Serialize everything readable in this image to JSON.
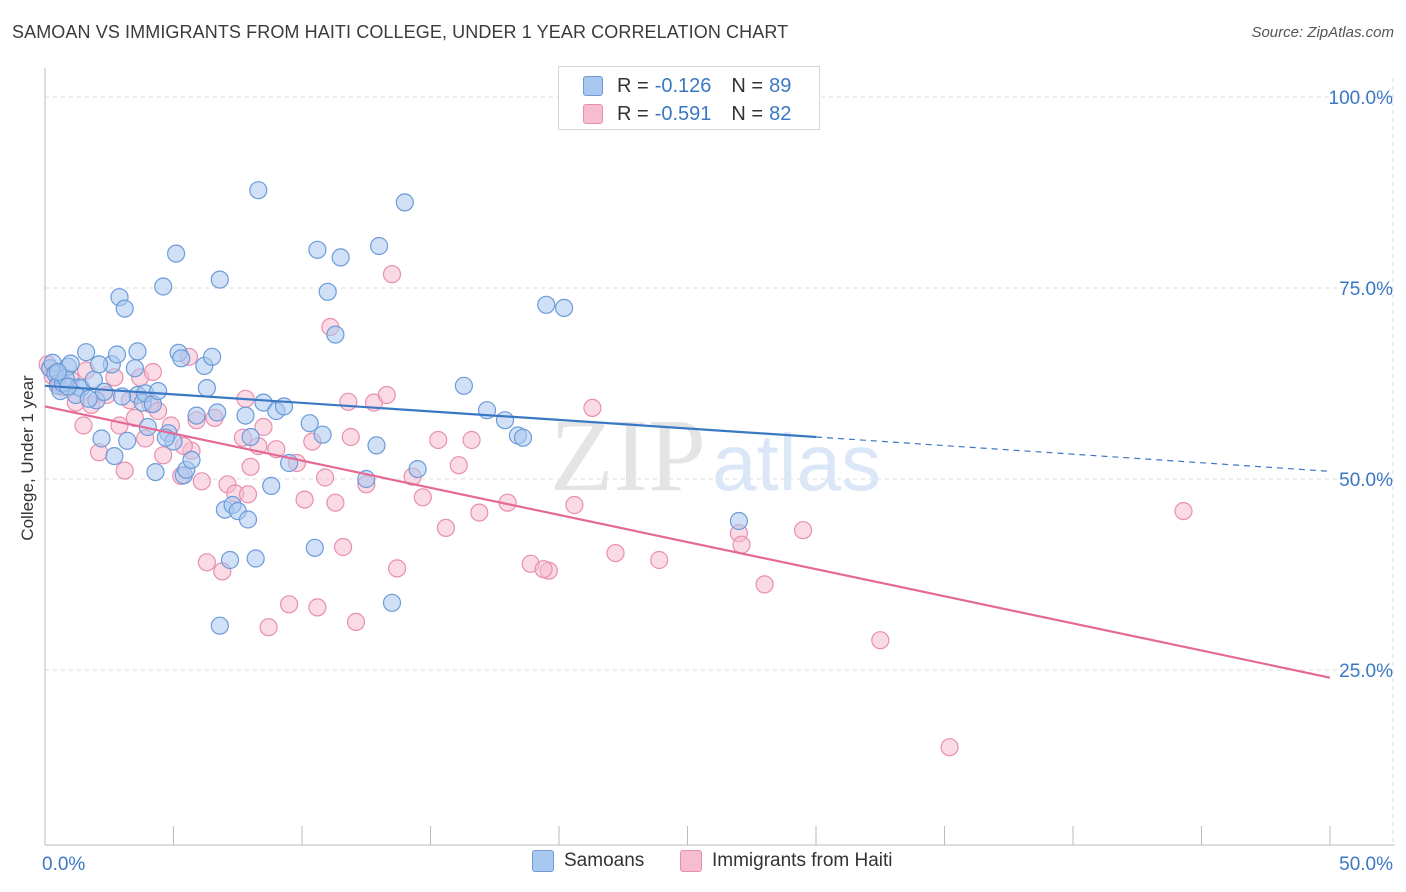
{
  "title": "SAMOAN VS IMMIGRANTS FROM HAITI COLLEGE, UNDER 1 YEAR CORRELATION CHART",
  "source": "Source: ZipAtlas.com",
  "legend": {
    "samoan": {
      "r_label": "R =",
      "r_value": "-0.126",
      "n_label": "N =",
      "n_value": "89"
    },
    "haiti": {
      "r_label": "R =",
      "r_value": "-0.591",
      "n_label": "N =",
      "n_value": "82"
    }
  },
  "colors": {
    "samoan_fill": "#a9c8f0",
    "samoan_stroke": "#6c9bd8",
    "samoan_line": "#3b78c4",
    "haiti_fill": "#f6bcd0",
    "haiti_stroke": "#e88fae",
    "haiti_line": "#e46a95",
    "axis_text": "#3b78c4",
    "grid": "#dddddd"
  },
  "watermark": {
    "zip": "ZIP",
    "atlas": "atlas"
  },
  "chart_data": {
    "type": "scatter",
    "title": "SAMOAN VS IMMIGRANTS FROM HAITI COLLEGE, UNDER 1 YEAR CORRELATION CHART",
    "xlabel": "",
    "ylabel": "College, Under 1 year",
    "xlim": [
      0,
      50
    ],
    "ylim": [
      5,
      103
    ],
    "x_ticks": [
      "0.0%",
      "50.0%"
    ],
    "y_ticks": [
      {
        "value": 100,
        "label": "100.0%"
      },
      {
        "value": 75,
        "label": "75.0%"
      },
      {
        "value": 50,
        "label": "50.0%"
      },
      {
        "value": 25,
        "label": "25.0%"
      }
    ],
    "grid": true,
    "legend_position": "bottom-center",
    "series": [
      {
        "name": "Samoans",
        "trend": {
          "x0": 0,
          "y0": 62.2,
          "x1": 30,
          "y1": 55.5,
          "dash_x1": 50,
          "dash_y1": 51.0
        },
        "points": [
          [
            0.2,
            64.5
          ],
          [
            0.3,
            65.2
          ],
          [
            0.4,
            63.8
          ],
          [
            0.5,
            62.2
          ],
          [
            0.6,
            61.5
          ],
          [
            0.7,
            62.5
          ],
          [
            0.9,
            64.7
          ],
          [
            0.8,
            63.2
          ],
          [
            1.0,
            65.1
          ],
          [
            1.3,
            62.0
          ],
          [
            1.6,
            66.6
          ],
          [
            1.4,
            61.9
          ],
          [
            1.9,
            63.0
          ],
          [
            2.0,
            60.3
          ],
          [
            2.2,
            55.3
          ],
          [
            2.3,
            61.4
          ],
          [
            2.6,
            65.0
          ],
          [
            2.8,
            66.3
          ],
          [
            2.7,
            53.0
          ],
          [
            2.9,
            73.8
          ],
          [
            3.1,
            72.3
          ],
          [
            3.2,
            55.0
          ],
          [
            3.5,
            64.5
          ],
          [
            3.6,
            61.0
          ],
          [
            3.6,
            66.7
          ],
          [
            3.8,
            60.0
          ],
          [
            3.9,
            61.2
          ],
          [
            4.0,
            56.8
          ],
          [
            4.2,
            59.8
          ],
          [
            4.3,
            50.9
          ],
          [
            4.4,
            61.5
          ],
          [
            4.6,
            75.2
          ],
          [
            4.8,
            56.0
          ],
          [
            5.0,
            54.9
          ],
          [
            5.1,
            79.5
          ],
          [
            5.2,
            66.5
          ],
          [
            5.3,
            65.8
          ],
          [
            5.4,
            50.5
          ],
          [
            5.5,
            51.2
          ],
          [
            5.7,
            52.5
          ],
          [
            5.9,
            58.3
          ],
          [
            6.2,
            64.8
          ],
          [
            6.3,
            61.9
          ],
          [
            6.5,
            66.0
          ],
          [
            6.7,
            58.7
          ],
          [
            6.8,
            76.1
          ],
          [
            7.0,
            46.0
          ],
          [
            7.2,
            39.4
          ],
          [
            7.3,
            46.6
          ],
          [
            7.5,
            45.8
          ],
          [
            7.8,
            58.3
          ],
          [
            7.9,
            44.7
          ],
          [
            8.0,
            55.5
          ],
          [
            8.2,
            39.6
          ],
          [
            8.3,
            87.8
          ],
          [
            8.5,
            60.0
          ],
          [
            8.8,
            49.1
          ],
          [
            9.0,
            58.9
          ],
          [
            9.3,
            59.5
          ],
          [
            9.5,
            52.1
          ],
          [
            10.3,
            57.3
          ],
          [
            10.5,
            41.0
          ],
          [
            10.6,
            80.0
          ],
          [
            10.8,
            55.8
          ],
          [
            11.0,
            74.5
          ],
          [
            11.3,
            68.9
          ],
          [
            11.5,
            79.0
          ],
          [
            12.5,
            50.0
          ],
          [
            12.9,
            54.4
          ],
          [
            13.0,
            80.5
          ],
          [
            13.5,
            33.8
          ],
          [
            14.0,
            86.2
          ],
          [
            14.5,
            51.3
          ],
          [
            16.3,
            62.2
          ],
          [
            17.2,
            59.0
          ],
          [
            17.9,
            57.7
          ],
          [
            18.4,
            55.7
          ],
          [
            19.5,
            72.8
          ],
          [
            20.2,
            72.4
          ],
          [
            27.0,
            44.5
          ],
          [
            1.2,
            61.0
          ],
          [
            2.1,
            65.0
          ],
          [
            3.0,
            60.8
          ],
          [
            0.5,
            64.0
          ],
          [
            1.7,
            60.5
          ],
          [
            6.8,
            30.8
          ],
          [
            4.7,
            55.4
          ],
          [
            0.9,
            62.1
          ],
          [
            18.6,
            55.4
          ]
        ]
      },
      {
        "name": "Immigrants from Haiti",
        "trend": {
          "x0": 0,
          "y0": 59.5,
          "x1": 50,
          "y1": 24.0
        },
        "points": [
          [
            0.1,
            65.0
          ],
          [
            0.2,
            64.5
          ],
          [
            0.3,
            63.5
          ],
          [
            0.5,
            62.5
          ],
          [
            0.7,
            62.0
          ],
          [
            1.0,
            63.0
          ],
          [
            1.2,
            60.0
          ],
          [
            1.5,
            57.0
          ],
          [
            1.8,
            59.7
          ],
          [
            2.1,
            53.5
          ],
          [
            2.4,
            61.0
          ],
          [
            2.7,
            63.3
          ],
          [
            2.9,
            57.0
          ],
          [
            3.1,
            51.1
          ],
          [
            3.3,
            60.3
          ],
          [
            3.5,
            58.0
          ],
          [
            3.7,
            63.3
          ],
          [
            3.9,
            55.3
          ],
          [
            4.1,
            59.8
          ],
          [
            4.2,
            64.0
          ],
          [
            4.4,
            58.9
          ],
          [
            4.6,
            53.1
          ],
          [
            4.9,
            57.0
          ],
          [
            5.3,
            50.4
          ],
          [
            5.6,
            66.0
          ],
          [
            5.7,
            53.7
          ],
          [
            5.9,
            57.7
          ],
          [
            6.1,
            49.7
          ],
          [
            6.3,
            39.1
          ],
          [
            6.6,
            58.0
          ],
          [
            6.9,
            37.9
          ],
          [
            7.1,
            49.3
          ],
          [
            7.4,
            48.1
          ],
          [
            7.7,
            55.4
          ],
          [
            7.8,
            60.5
          ],
          [
            8.0,
            51.6
          ],
          [
            8.3,
            54.3
          ],
          [
            8.5,
            56.8
          ],
          [
            8.7,
            30.6
          ],
          [
            9.0,
            53.9
          ],
          [
            9.5,
            33.6
          ],
          [
            9.8,
            52.1
          ],
          [
            10.1,
            47.3
          ],
          [
            10.4,
            54.9
          ],
          [
            10.6,
            33.2
          ],
          [
            10.9,
            50.2
          ],
          [
            11.1,
            69.9
          ],
          [
            11.3,
            46.9
          ],
          [
            11.6,
            41.1
          ],
          [
            11.9,
            55.5
          ],
          [
            11.8,
            60.1
          ],
          [
            12.1,
            31.3
          ],
          [
            12.5,
            49.3
          ],
          [
            12.8,
            60.0
          ],
          [
            13.3,
            61.0
          ],
          [
            13.7,
            38.3
          ],
          [
            14.3,
            50.3
          ],
          [
            14.7,
            47.6
          ],
          [
            15.3,
            55.1
          ],
          [
            15.6,
            43.6
          ],
          [
            16.1,
            51.8
          ],
          [
            16.9,
            45.6
          ],
          [
            18.0,
            46.9
          ],
          [
            18.9,
            38.9
          ],
          [
            19.6,
            38.0
          ],
          [
            20.6,
            46.6
          ],
          [
            21.3,
            59.3
          ],
          [
            22.2,
            40.3
          ],
          [
            23.9,
            39.4
          ],
          [
            27.0,
            42.9
          ],
          [
            27.1,
            41.4
          ],
          [
            28.0,
            36.2
          ],
          [
            29.5,
            43.3
          ],
          [
            32.5,
            28.9
          ],
          [
            35.2,
            14.9
          ],
          [
            44.3,
            45.8
          ],
          [
            1.6,
            64.2
          ],
          [
            5.4,
            54.3
          ],
          [
            7.9,
            48.0
          ],
          [
            13.5,
            76.8
          ],
          [
            16.6,
            55.1
          ],
          [
            19.4,
            38.2
          ]
        ]
      }
    ]
  }
}
